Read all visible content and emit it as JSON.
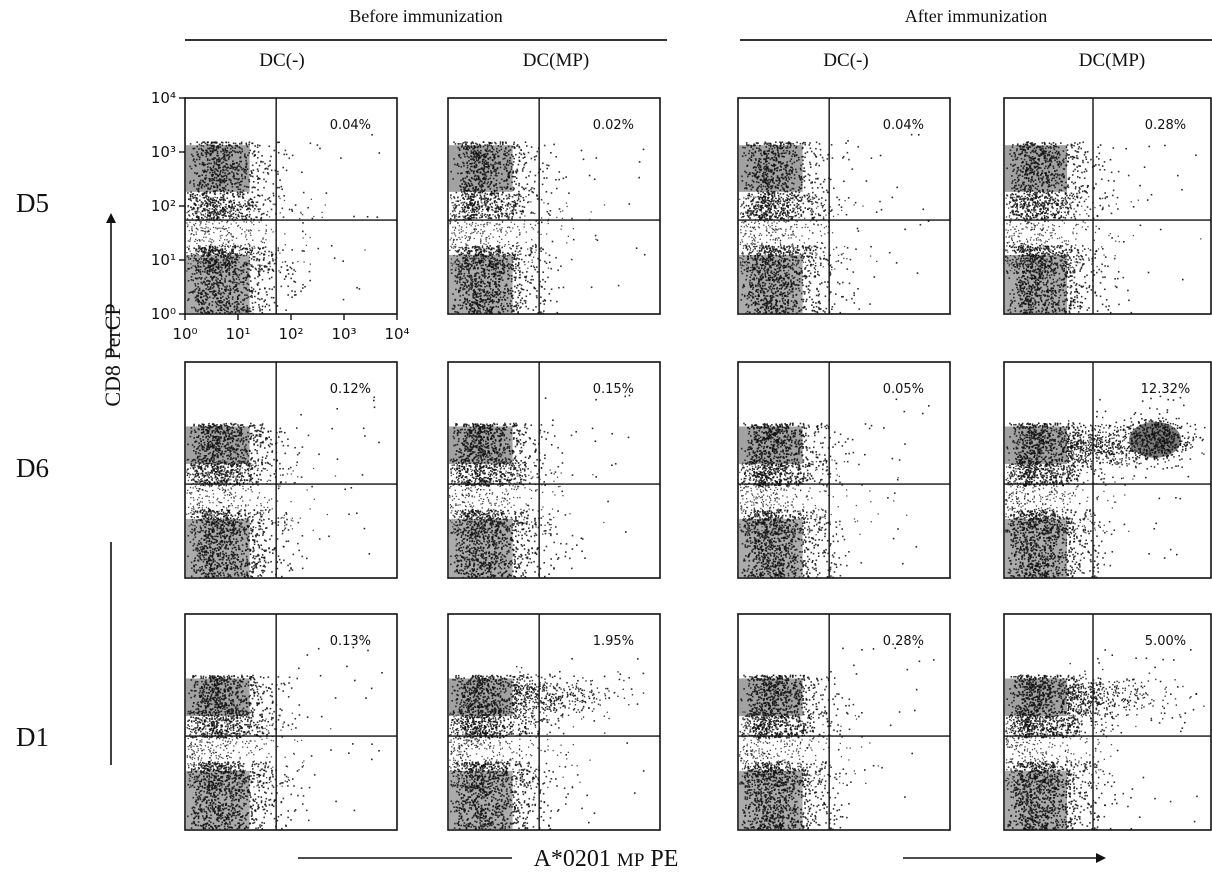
{
  "headers": {
    "before": "Before immunization",
    "after": "After immunization"
  },
  "columns": [
    "DC(-)",
    "DC(MP)",
    "DC(-)",
    "DC(MP)"
  ],
  "rows": [
    "D5",
    "D6",
    "D1"
  ],
  "y_axis_label": "CD8 PerCP",
  "x_axis_label": {
    "prefix": "A*0201",
    "mid": "MP",
    "suffix": "PE"
  },
  "chart_data": {
    "type": "scatter",
    "subtype": "flow cytometry density dot plots (4 x 3 grid)",
    "x_axis": {
      "label": "A*0201 MP PE",
      "scale": "log",
      "range": [
        1,
        10000
      ],
      "ticks": [
        "10⁰",
        "10¹",
        "10²",
        "10³",
        "10⁴"
      ]
    },
    "y_axis": {
      "label": "CD8 PerCP",
      "scale": "log",
      "range": [
        1,
        10000
      ],
      "ticks": [
        "10⁰",
        "10¹",
        "10²",
        "10³",
        "10⁴"
      ]
    },
    "column_groups": [
      {
        "name": "Before immunization",
        "columns": [
          "DC(-)",
          "DC(MP)"
        ]
      },
      {
        "name": "After immunization",
        "columns": [
          "DC(-)",
          "DC(MP)"
        ]
      }
    ],
    "panels": [
      {
        "row": "D5",
        "column": "DC(-)",
        "group": "Before immunization",
        "upper_right_label": "0.04%"
      },
      {
        "row": "D5",
        "column": "DC(MP)",
        "group": "Before immunization",
        "upper_right_label": "0.02%"
      },
      {
        "row": "D5",
        "column": "DC(-)",
        "group": "After immunization",
        "upper_right_label": "0.04%"
      },
      {
        "row": "D5",
        "column": "DC(MP)",
        "group": "After immunization",
        "upper_right_label": "0.28%"
      },
      {
        "row": "D6",
        "column": "DC(-)",
        "group": "Before immunization",
        "upper_right_label": "0.12%"
      },
      {
        "row": "D6",
        "column": "DC(MP)",
        "group": "Before immunization",
        "upper_right_label": "0.15%"
      },
      {
        "row": "D6",
        "column": "DC(-)",
        "group": "After immunization",
        "upper_right_label": "0.05%"
      },
      {
        "row": "D6",
        "column": "DC(MP)",
        "group": "After immunization",
        "upper_right_label": "12.32%"
      },
      {
        "row": "D1",
        "column": "DC(-)",
        "group": "Before immunization",
        "upper_right_label": "0.13%"
      },
      {
        "row": "D1",
        "column": "DC(MP)",
        "group": "Before immunization",
        "upper_right_label": "1.95%"
      },
      {
        "row": "D1",
        "column": "DC(-)",
        "group": "After immunization",
        "upper_right_label": "0.28%"
      },
      {
        "row": "D1",
        "column": "DC(MP)",
        "group": "After immunization",
        "upper_right_label": "5.00%"
      }
    ]
  }
}
